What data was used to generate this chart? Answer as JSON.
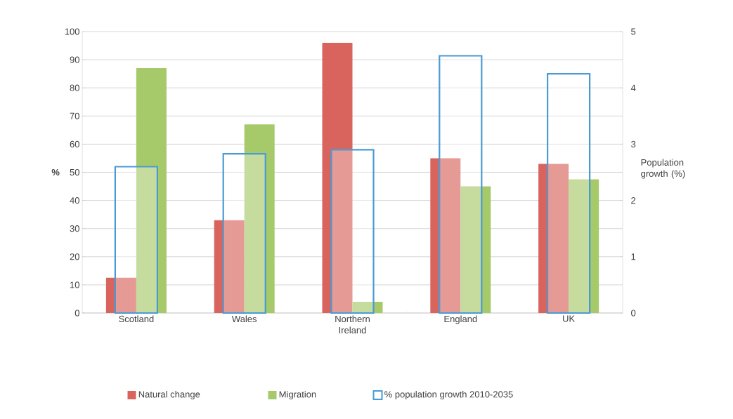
{
  "chart_data": {
    "type": "bar",
    "categories": [
      "Scotland",
      "Wales",
      "Northern Ireland",
      "England",
      "UK"
    ],
    "series": [
      {
        "name": "Natural change",
        "color": "#d9645e",
        "values": [
          12.5,
          33,
          96,
          55,
          53
        ]
      },
      {
        "name": "Migration",
        "color": "#a6c96a",
        "values": [
          87,
          67,
          4,
          45,
          47.5
        ]
      },
      {
        "name": "% population growth 2010-2035",
        "color": "#4a9bd4",
        "axis": "y2",
        "values": [
          2.6,
          2.83,
          2.9,
          4.57,
          4.25
        ]
      }
    ],
    "ylabel": "%",
    "y2label": "Population growth (%)",
    "ylim": [
      0,
      100
    ],
    "yticks": [
      0,
      10,
      20,
      30,
      40,
      50,
      60,
      70,
      80,
      90,
      100
    ],
    "y2lim": [
      0,
      5
    ],
    "y2ticks": [
      0,
      1,
      2,
      3,
      4,
      5
    ],
    "grid": "y",
    "legend": "bottom"
  }
}
